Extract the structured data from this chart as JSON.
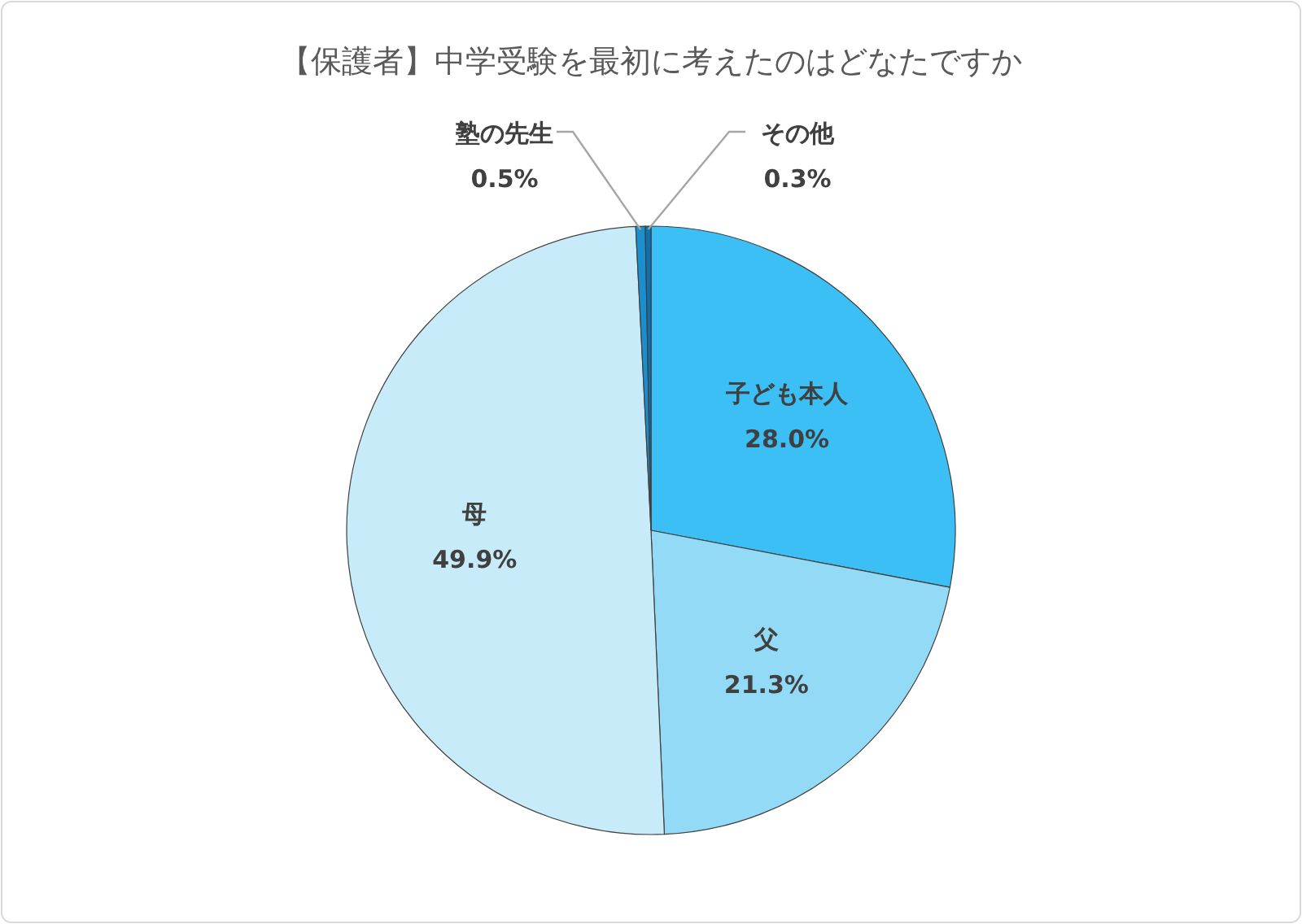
{
  "chart_data": {
    "type": "pie",
    "title": "【保護者】中学受験を最初に考えたのはどなたですか",
    "categories": [
      "子ども本人",
      "父",
      "母",
      "塾の先生",
      "その他"
    ],
    "values": [
      28.0,
      21.3,
      49.9,
      0.5,
      0.3
    ],
    "colors": [
      "#3bbff5",
      "#93daf7",
      "#c8ebfa",
      "#1a8fd0",
      "#0f70b0"
    ],
    "value_labels": [
      "28.0%",
      "21.3%",
      "49.9%",
      "0.5%",
      "0.3%"
    ]
  }
}
